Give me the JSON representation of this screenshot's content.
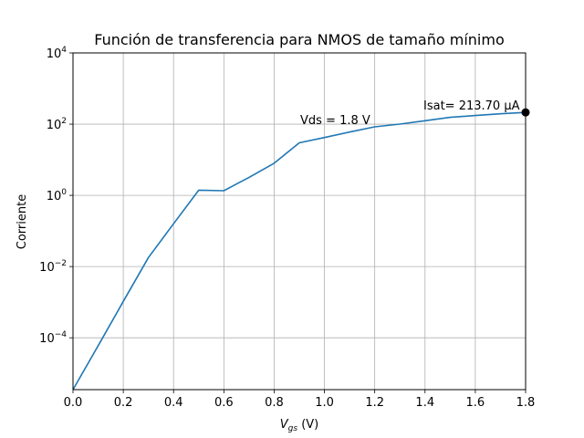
{
  "chart_data": {
    "type": "line",
    "title": "Función de transferencia para NMOS de tamaño mínimo",
    "xlabel_main": "V",
    "xlabel_sub": "gs",
    "xlabel_unit": " (V)",
    "ylabel": "Corriente",
    "xlim": [
      0,
      1.8
    ],
    "ylim": [
      3.5e-06,
      10000
    ],
    "yscale": "log",
    "grid": true,
    "x_ticks": [
      "0.0",
      "0.2",
      "0.4",
      "0.6",
      "0.8",
      "1.0",
      "1.2",
      "1.4",
      "1.6",
      "1.8"
    ],
    "y_ticks": [
      {
        "base": "10",
        "exp": "−4"
      },
      {
        "base": "10",
        "exp": "−2"
      },
      {
        "base": "10",
        "exp": "0"
      },
      {
        "base": "10",
        "exp": "2"
      },
      {
        "base": "10",
        "exp": "4"
      }
    ],
    "series": [
      {
        "color": "#1f77b4",
        "x": [
          0.0,
          0.1,
          0.2,
          0.3,
          0.4,
          0.5,
          0.6,
          0.7,
          0.8,
          0.9,
          1.0,
          1.1,
          1.2,
          1.3,
          1.4,
          1.5,
          1.6,
          1.7,
          1.8
        ],
        "y": [
          3.5e-06,
          6e-05,
          0.00105,
          0.018,
          0.16,
          1.4,
          1.35,
          3.2,
          8.0,
          30,
          42,
          60,
          84,
          100,
          125,
          155,
          175,
          195,
          213.7
        ]
      }
    ],
    "marker_point": {
      "x": 1.8,
      "y": 213.7,
      "color": "#000000"
    },
    "annotations": {
      "vds": "Vds = 1.8 V",
      "isat": "Isat= 213.70 μA"
    }
  }
}
